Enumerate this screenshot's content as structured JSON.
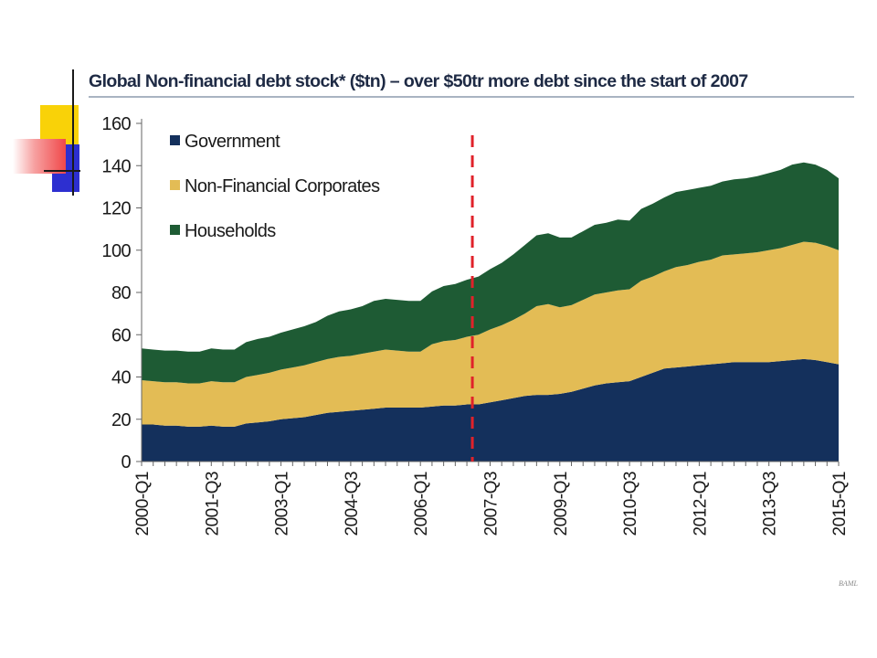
{
  "chart_data": {
    "type": "area",
    "stacked": true,
    "title": "Global Non-financial debt stock* ($tn) – over $50tr more debt since the start of 2007",
    "xlabel": "",
    "ylabel": "",
    "ylim": [
      0,
      160
    ],
    "yticks": [
      "0",
      "20",
      "40",
      "60",
      "80",
      "100",
      "120",
      "140",
      "160"
    ],
    "grid": false,
    "legend_position": "top-left",
    "x_start": "2000-Q1",
    "x_end": "2015-Q1",
    "xtick_labels": [
      "2000-Q1",
      "2001-Q3",
      "2003-Q1",
      "2004-Q3",
      "2006-Q1",
      "2007-Q3",
      "2009-Q1",
      "2010-Q3",
      "2012-Q1",
      "2013-Q3",
      "2015-Q1"
    ],
    "x": [
      "2000-Q1",
      "2000-Q2",
      "2000-Q3",
      "2000-Q4",
      "2001-Q1",
      "2001-Q2",
      "2001-Q3",
      "2001-Q4",
      "2002-Q1",
      "2002-Q2",
      "2002-Q3",
      "2002-Q4",
      "2003-Q1",
      "2003-Q2",
      "2003-Q3",
      "2003-Q4",
      "2004-Q1",
      "2004-Q2",
      "2004-Q3",
      "2004-Q4",
      "2005-Q1",
      "2005-Q2",
      "2005-Q3",
      "2005-Q4",
      "2006-Q1",
      "2006-Q2",
      "2006-Q3",
      "2006-Q4",
      "2007-Q1",
      "2007-Q2",
      "2007-Q3",
      "2007-Q4",
      "2008-Q1",
      "2008-Q2",
      "2008-Q3",
      "2008-Q4",
      "2009-Q1",
      "2009-Q2",
      "2009-Q3",
      "2009-Q4",
      "2010-Q1",
      "2010-Q2",
      "2010-Q3",
      "2010-Q4",
      "2011-Q1",
      "2011-Q2",
      "2011-Q3",
      "2011-Q4",
      "2012-Q1",
      "2012-Q2",
      "2012-Q3",
      "2012-Q4",
      "2013-Q1",
      "2013-Q2",
      "2013-Q3",
      "2013-Q4",
      "2014-Q1",
      "2014-Q2",
      "2014-Q3",
      "2014-Q4",
      "2015-Q1"
    ],
    "series": [
      {
        "name": "Government",
        "color": "#14305c",
        "values": [
          17.5,
          17.5,
          17,
          17,
          16.5,
          16.5,
          17,
          16.5,
          16.5,
          18,
          18.5,
          19,
          20,
          20.5,
          21,
          22,
          23,
          23.5,
          24,
          24.5,
          25,
          25.5,
          25.5,
          25.5,
          25.5,
          26,
          26.5,
          26.5,
          27,
          27,
          28,
          29,
          30,
          31,
          31.5,
          31.5,
          32,
          33,
          34.5,
          36,
          37,
          37.5,
          38,
          40,
          42,
          44,
          44.5,
          45,
          45.5,
          46,
          46.5,
          47,
          47,
          47,
          47,
          47.5,
          48,
          48.5,
          48,
          47,
          46
        ]
      },
      {
        "name": "Non-Financial Corporates",
        "color": "#e3bc55",
        "values": [
          21,
          20.5,
          20.5,
          20.5,
          20.5,
          20.5,
          21,
          21,
          21,
          22,
          22.5,
          23,
          23.5,
          24,
          24.5,
          25,
          25.5,
          26,
          26,
          26.5,
          27,
          27.5,
          27,
          26.5,
          26.5,
          29.5,
          30.5,
          31,
          32,
          33,
          34.5,
          35.5,
          37,
          39,
          42,
          43,
          41,
          41,
          42,
          43,
          43,
          43.5,
          43.5,
          45.5,
          45.5,
          46,
          47.5,
          48,
          49,
          49.5,
          51,
          51,
          51.5,
          52,
          53,
          53.5,
          54.5,
          55.5,
          55.5,
          55,
          54
        ]
      },
      {
        "name": "Households",
        "color": "#1e5b34",
        "values": [
          15,
          15,
          15,
          15,
          15,
          15,
          15.5,
          15.5,
          15.5,
          16.5,
          17,
          17,
          17.5,
          18,
          18.5,
          19,
          20.5,
          21.5,
          22,
          22.5,
          24,
          24,
          24,
          24,
          24,
          25,
          26,
          26.5,
          27,
          27.5,
          28.5,
          29.5,
          31,
          32.5,
          33.5,
          33.5,
          33,
          32,
          32.5,
          33,
          33,
          33.5,
          32.5,
          34,
          34.5,
          35,
          35.5,
          35.5,
          35,
          35,
          35,
          35.5,
          35.5,
          36,
          36.5,
          37,
          38,
          37.5,
          37,
          36,
          34
        ]
      }
    ],
    "annotations": [
      {
        "type": "vertical-dashed-line",
        "x": "2007-Q1",
        "color": "#e0222a"
      }
    ],
    "source": "BAML"
  },
  "decor_colors": {
    "yellow": "#f9d208",
    "blue": "#2d2fd0",
    "red": "#f0484a"
  }
}
